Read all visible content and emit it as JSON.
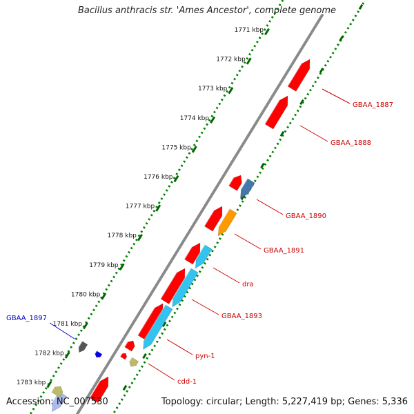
{
  "title": "Bacillus anthracis str. 'Ames Ancestor', complete genome",
  "footer": {
    "accession": "Accession: NC_007530",
    "topology": "Topology: circular; Length: 5,227,419 bp; Genes: 5,336"
  },
  "ticks": [
    "1771 kbp",
    "1772 kbp",
    "1773 kbp",
    "1774 kbp",
    "1775 kbp",
    "1776 kbp",
    "1777 kbp",
    "1778 kbp",
    "1779 kbp",
    "1780 kbp",
    "1781 kbp",
    "1782 kbp",
    "1783 kbp"
  ],
  "genes": [
    {
      "label": "GBAA_1887",
      "color": "#cc0000"
    },
    {
      "label": "GBAA_1888",
      "color": "#cc0000"
    },
    {
      "label": "GBAA_1890",
      "color": "#cc0000"
    },
    {
      "label": "GBAA_1891",
      "color": "#cc0000"
    },
    {
      "label": "dra",
      "color": "#cc0000"
    },
    {
      "label": "GBAA_1893",
      "color": "#cc0000"
    },
    {
      "label": "pyn-1",
      "color": "#cc0000"
    },
    {
      "label": "cdd-1",
      "color": "#cc0000"
    },
    {
      "label": "GBAA_1897",
      "color": "#0000cc"
    }
  ],
  "colors": {
    "backbone": "#808080",
    "tick_ring": "#008000",
    "cds": "#ff0000",
    "cds_blue": "#33c3ee",
    "orange": "#ff9900",
    "steelblue": "#4477aa",
    "gray": "#555555",
    "dark_blue": "#0000ee",
    "khaki": "#bbbb66"
  }
}
